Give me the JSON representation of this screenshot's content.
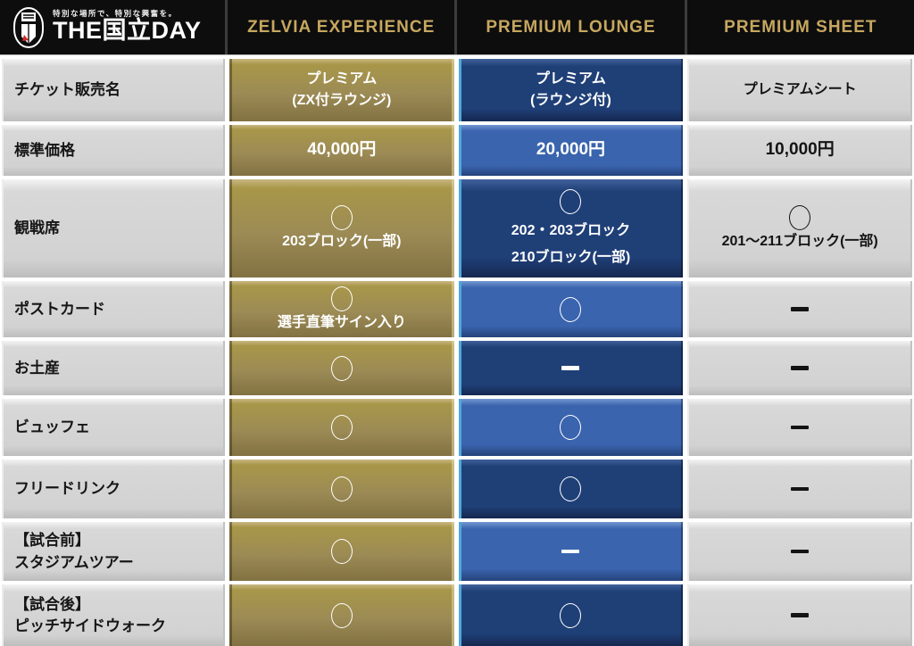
{
  "logo": {
    "tagline": "特別な場所で、特別な興奮を。",
    "title": "THE国立DAY"
  },
  "header": {
    "columns": [
      "ZELVIA EXPERIENCE",
      "PREMIUM LOUNGE",
      "PREMIUM SHEET"
    ]
  },
  "palette": {
    "header_bg": "#0d0d0d",
    "header_gold": "#c6a75f",
    "gold": "#9c8b55",
    "blue_dark": "#1f3f77",
    "blue_light": "#3a64ae",
    "blue_edge": "#4fa8dc",
    "gray": "#d2d2d2",
    "badge_red": "#d62828"
  },
  "rows": [
    {
      "label_lines": [
        "チケット販売名"
      ],
      "cells": [
        {
          "lines": [
            "プレミアム",
            "(ZX付ラウンジ)"
          ]
        },
        {
          "shade": "dark",
          "lines": [
            "プレミアム",
            "(ラウンジ付)"
          ]
        },
        {
          "lines": [
            "プレミアムシート"
          ]
        }
      ]
    },
    {
      "label_lines": [
        "標準価格"
      ],
      "cells": [
        {
          "big": true,
          "lines": [
            "40,000円"
          ]
        },
        {
          "shade": "light",
          "big": true,
          "lines": [
            "20,000円"
          ]
        },
        {
          "big": true,
          "lines": [
            "10,000円"
          ]
        }
      ]
    },
    {
      "label_lines": [
        "観戦席"
      ],
      "cells": [
        {
          "mark": "circle",
          "lines": [
            "203ブロック(一部)"
          ]
        },
        {
          "shade": "dark",
          "mark": "circle",
          "spaced": true,
          "lines": [
            "202・203ブロック",
            "210ブロック(一部)"
          ]
        },
        {
          "mark": "circle",
          "lines": [
            "201〜211ブロック(一部)"
          ]
        }
      ]
    },
    {
      "label_lines": [
        "ポストカード"
      ],
      "cells": [
        {
          "mark": "circle",
          "lines": [
            "選手直筆サイン入り"
          ]
        },
        {
          "shade": "light",
          "mark": "circle"
        },
        {
          "mark": "dash"
        }
      ]
    },
    {
      "label_lines": [
        "お土産"
      ],
      "cells": [
        {
          "mark": "circle"
        },
        {
          "shade": "dark",
          "mark": "dash"
        },
        {
          "mark": "dash"
        }
      ]
    },
    {
      "label_lines": [
        "ビュッフェ"
      ],
      "cells": [
        {
          "mark": "circle"
        },
        {
          "shade": "light",
          "mark": "circle"
        },
        {
          "mark": "dash"
        }
      ]
    },
    {
      "label_lines": [
        "フリードリンク"
      ],
      "cells": [
        {
          "mark": "circle"
        },
        {
          "shade": "dark",
          "mark": "circle"
        },
        {
          "mark": "dash"
        }
      ]
    },
    {
      "label_lines": [
        "【試合前】",
        "スタジアムツアー"
      ],
      "cells": [
        {
          "mark": "circle"
        },
        {
          "shade": "light",
          "mark": "dash"
        },
        {
          "mark": "dash"
        }
      ]
    },
    {
      "label_lines": [
        "【試合後】",
        "ピッチサイドウォーク"
      ],
      "cells": [
        {
          "mark": "circle"
        },
        {
          "shade": "dark",
          "mark": "circle"
        },
        {
          "mark": "dash"
        }
      ]
    }
  ]
}
